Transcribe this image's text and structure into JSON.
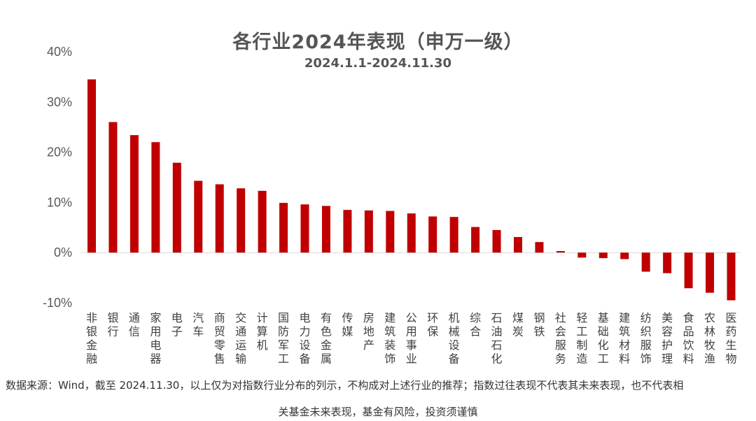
{
  "header": {
    "title": "各行业2024年表现（申万一级）",
    "subtitle": "2024.1.1-2024.11.30"
  },
  "chart_data": {
    "type": "bar",
    "title": "各行业2024年表现（申万一级）",
    "subtitle": "2024.1.1-2024.11.30",
    "categories": [
      "非银金融",
      "银行",
      "通信",
      "家用电器",
      "电子",
      "汽车",
      "商贸零售",
      "交通运输",
      "计算机",
      "国防军工",
      "电力设备",
      "有色金属",
      "传媒",
      "房地产",
      "建筑装饰",
      "公用事业",
      "环保",
      "机械设备",
      "综合",
      "石油石化",
      "煤炭",
      "钢铁",
      "社会服务",
      "轻工制造",
      "基础化工",
      "建筑材料",
      "纺织服饰",
      "美容护理",
      "食品饮料",
      "农林牧渔",
      "医药生物"
    ],
    "values": [
      34.5,
      26.0,
      23.4,
      22.0,
      17.9,
      14.3,
      13.6,
      12.8,
      12.3,
      9.9,
      9.6,
      9.3,
      8.5,
      8.4,
      8.3,
      7.8,
      7.2,
      7.1,
      5.1,
      4.5,
      3.1,
      2.1,
      0.3,
      -1.0,
      -1.1,
      -1.3,
      -3.8,
      -4.1,
      -7.1,
      -8.0,
      -9.5
    ],
    "ylim": [
      -10,
      40
    ],
    "yticks": [
      "40%",
      "30%",
      "20%",
      "10%",
      "0%",
      "-10%"
    ],
    "ytick_values": [
      40,
      30,
      20,
      10,
      0,
      -10
    ],
    "bar_color": "#C00000",
    "grid": false,
    "legend": "none"
  },
  "footer": {
    "line1": "数据来源：Wind，截至 2024.11.30，以上仅为对指数行业分布的列示，不构成对上述行业的推荐；指数过往表现不代表其未来表现，也不代表相",
    "line2": "关基金未来表现，基金有风险，投资须谨慎"
  }
}
